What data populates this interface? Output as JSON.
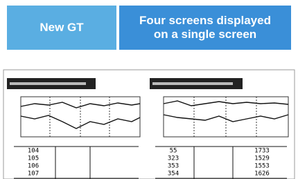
{
  "header": {
    "left": "New GT",
    "right": [
      "Four screens displayed",
      "on a single screen"
    ]
  },
  "panels": [
    {
      "rows": [
        [
          "104"
        ],
        [
          "105"
        ],
        [
          "106"
        ],
        [
          "107"
        ]
      ]
    },
    {
      "rows": [
        [
          "55",
          "1733"
        ],
        [
          "323",
          "1529"
        ],
        [
          "353",
          "1553"
        ],
        [
          "354",
          "1626"
        ]
      ]
    }
  ]
}
